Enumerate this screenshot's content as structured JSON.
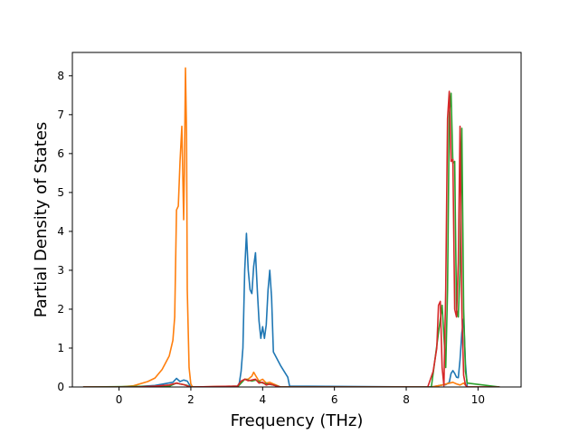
{
  "chart_data": {
    "type": "line",
    "title": "",
    "xlabel": "Frequency (THz)",
    "ylabel": "Partial Density of States",
    "xlim": [
      -1.3,
      11.2
    ],
    "ylim": [
      0,
      8.6
    ],
    "xticks": [
      0,
      2,
      4,
      6,
      8,
      10
    ],
    "yticks": [
      0,
      1,
      2,
      3,
      4,
      5,
      6,
      7,
      8
    ],
    "grid": false,
    "legend": "none",
    "series": [
      {
        "color": "#1f77b4",
        "x": [
          -1.0,
          0.3,
          1.0,
          1.5,
          1.6,
          1.7,
          1.8,
          1.9,
          2.0,
          2.2,
          3.3,
          3.35,
          3.4,
          3.45,
          3.5,
          3.55,
          3.6,
          3.65,
          3.7,
          3.75,
          3.8,
          3.85,
          3.9,
          3.95,
          4.0,
          4.05,
          4.1,
          4.15,
          4.2,
          4.25,
          4.3,
          4.5,
          4.7,
          4.75,
          8.7,
          9.0,
          9.1,
          9.2,
          9.25,
          9.3,
          9.35,
          9.4,
          9.45,
          9.5,
          9.55,
          9.6,
          9.65,
          9.7,
          10.6
        ],
        "y": [
          0,
          0,
          0.04,
          0.12,
          0.22,
          0.14,
          0.18,
          0.15,
          0,
          0,
          0.02,
          0.1,
          0.4,
          1.0,
          3.0,
          3.95,
          3.0,
          2.5,
          2.4,
          3.1,
          3.45,
          2.5,
          1.7,
          1.25,
          1.55,
          1.25,
          1.6,
          2.5,
          3.0,
          2.3,
          0.9,
          0.55,
          0.25,
          0.02,
          0,
          0.05,
          0.06,
          0.12,
          0.35,
          0.42,
          0.35,
          0.25,
          0.24,
          0.7,
          1.4,
          1.75,
          0.6,
          0,
          0
        ]
      },
      {
        "color": "#ff7f0e",
        "x": [
          -1.0,
          0.0,
          0.4,
          0.8,
          1.0,
          1.2,
          1.4,
          1.5,
          1.55,
          1.6,
          1.65,
          1.7,
          1.75,
          1.8,
          1.82,
          1.85,
          1.88,
          1.9,
          1.95,
          2.0,
          2.05,
          3.3,
          3.5,
          3.6,
          3.7,
          3.75,
          3.8,
          3.9,
          4.0,
          4.1,
          4.2,
          4.3,
          4.5,
          8.7,
          9.0,
          9.3,
          9.4,
          9.5,
          9.6,
          9.7,
          10.6
        ],
        "y": [
          0,
          0,
          0.03,
          0.14,
          0.23,
          0.45,
          0.8,
          1.2,
          1.8,
          4.55,
          4.65,
          5.8,
          6.7,
          4.3,
          5.5,
          8.2,
          6.5,
          2.5,
          0.5,
          0.08,
          0,
          0.02,
          0.2,
          0.2,
          0.28,
          0.38,
          0.3,
          0.15,
          0.2,
          0.1,
          0.12,
          0.08,
          0,
          0,
          0.05,
          0.12,
          0.08,
          0.05,
          0.1,
          0,
          0
        ]
      },
      {
        "color": "#2ca02c",
        "x": [
          -1.0,
          1.4,
          1.6,
          1.7,
          1.8,
          1.9,
          2.0,
          3.3,
          3.5,
          3.7,
          3.8,
          4.0,
          4.3,
          4.5,
          8.7,
          9.0,
          9.1,
          9.15,
          9.2,
          9.25,
          9.3,
          9.35,
          9.4,
          9.45,
          9.5,
          9.55,
          9.6,
          9.65,
          9.7,
          10.6
        ],
        "y": [
          0,
          0.02,
          0.1,
          0.08,
          0.06,
          0.04,
          0,
          0,
          0.2,
          0.15,
          0.18,
          0.1,
          0.05,
          0,
          0,
          2.1,
          0.5,
          2.5,
          7.0,
          7.55,
          5.75,
          5.8,
          2.0,
          1.8,
          3.0,
          6.65,
          2.0,
          0.4,
          0.1,
          0
        ]
      },
      {
        "color": "#d62728",
        "x": [
          -1.0,
          0.5,
          1.0,
          1.4,
          1.6,
          1.7,
          1.8,
          1.9,
          2.0,
          3.3,
          3.4,
          3.5,
          3.6,
          3.7,
          3.8,
          3.9,
          4.0,
          4.1,
          4.2,
          4.4,
          4.5,
          8.6,
          8.75,
          8.85,
          8.9,
          8.95,
          9.0,
          9.05,
          9.1,
          9.15,
          9.2,
          9.25,
          9.3,
          9.35,
          9.4,
          9.45,
          9.5,
          9.55,
          9.6,
          9.65,
          9.7,
          10.6
        ],
        "y": [
          0,
          0,
          0.02,
          0.05,
          0.1,
          0.08,
          0.06,
          0.03,
          0,
          0.02,
          0.15,
          0.2,
          0.16,
          0.18,
          0.2,
          0.1,
          0.12,
          0.05,
          0.08,
          0.02,
          0,
          0,
          0.4,
          1.0,
          2.1,
          2.2,
          0.5,
          0.03,
          2.5,
          6.9,
          7.6,
          5.8,
          5.85,
          2.0,
          1.8,
          3.2,
          6.7,
          2.0,
          0.3,
          0.05,
          0,
          0
        ]
      }
    ]
  }
}
